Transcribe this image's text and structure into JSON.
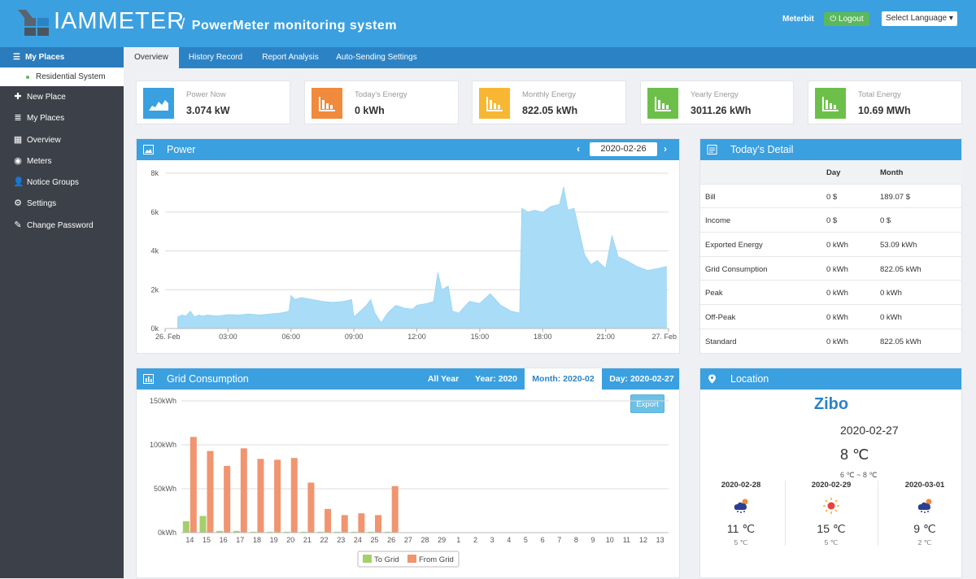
{
  "header": {
    "brand": "IAMMETER",
    "system_title": "PowerMeter monitoring system",
    "user": "Meterbit",
    "logout": "Logout",
    "language": "Select Language"
  },
  "sidebar": {
    "my_places": "My Places",
    "residential": "Residential System",
    "items": [
      {
        "label": "New Place",
        "icon": "plus-icon"
      },
      {
        "label": "My Places",
        "icon": "server-icon"
      },
      {
        "label": "Overview",
        "icon": "grid-icon"
      },
      {
        "label": "Meters",
        "icon": "dashboard-icon"
      },
      {
        "label": "Notice Groups",
        "icon": "user-icon"
      },
      {
        "label": "Settings",
        "icon": "gear-icon"
      },
      {
        "label": "Change Password",
        "icon": "edit-icon"
      }
    ]
  },
  "tabs": [
    "Overview",
    "History Record",
    "Report Analysis",
    "Auto-Sending Settings"
  ],
  "cards": [
    {
      "label": "Power Now",
      "value": "3.074 kW",
      "color": "#3aa0e0"
    },
    {
      "label": "Today's Energy",
      "value": "0 kWh",
      "color": "#f08a3c"
    },
    {
      "label": "Monthly Energy",
      "value": "822.05 kWh",
      "color": "#f7b733"
    },
    {
      "label": "Yearly Energy",
      "value": "3011.26 kWh",
      "color": "#6cc04a"
    },
    {
      "label": "Total Energy",
      "value": "10.69 MWh",
      "color": "#6cc04a"
    }
  ],
  "power_panel": {
    "title": "Power",
    "date": "2020-02-26"
  },
  "detail_panel": {
    "title": "Today's Detail",
    "headers": [
      "",
      "Day",
      "Month"
    ],
    "rows": [
      [
        "Bill",
        "0 $",
        "189.07 $"
      ],
      [
        "Income",
        "0 $",
        "0 $"
      ],
      [
        "Exported Energy",
        "0 kWh",
        "53.09 kWh"
      ],
      [
        "Grid Consumption",
        "0 kWh",
        "822.05 kWh"
      ],
      [
        "Peak",
        "0 kWh",
        "0 kWh"
      ],
      [
        "Off-Peak",
        "0 kWh",
        "0 kWh"
      ],
      [
        "Standard",
        "0 kWh",
        "822.05 kWh"
      ]
    ]
  },
  "grid_panel": {
    "title": "Grid Consumption",
    "tabs": [
      "All Year",
      "Year: 2020",
      "Month: 2020-02",
      "Day: 2020-02-27"
    ],
    "export": "Export"
  },
  "location_panel": {
    "title": "Location",
    "city": "Zibo",
    "date": "2020-02-27",
    "temp": "8 ℃",
    "range": "6 ℃ ~ 8 ℃",
    "forecast": [
      {
        "date": "2020-02-28",
        "high": "11 ℃",
        "low": "5 ℃",
        "icon": "cloudy-rain-icon"
      },
      {
        "date": "2020-02-29",
        "high": "15 ℃",
        "low": "5 ℃",
        "icon": "sun-icon"
      },
      {
        "date": "2020-03-01",
        "high": "9 ℃",
        "low": "2 ℃",
        "icon": "cloudy-rain-icon"
      }
    ]
  },
  "chart_data": [
    {
      "type": "area",
      "title": "Power",
      "y_ticks": [
        "0k",
        "2k",
        "4k",
        "6k",
        "8k"
      ],
      "ylim": [
        0,
        8000
      ],
      "x_ticks": [
        "26. Feb",
        "03:00",
        "06:00",
        "09:00",
        "12:00",
        "15:00",
        "18:00",
        "21:00",
        "27. Feb"
      ],
      "x_hours": [
        0,
        3,
        6,
        9,
        12,
        15,
        18,
        21,
        24
      ],
      "series": [
        {
          "color": "#a9dcf6",
          "points": [
            [
              0.6,
              600
            ],
            [
              0.8,
              700
            ],
            [
              1.0,
              650
            ],
            [
              1.2,
              900
            ],
            [
              1.4,
              600
            ],
            [
              1.6,
              700
            ],
            [
              1.8,
              650
            ],
            [
              2.0,
              700
            ],
            [
              2.5,
              650
            ],
            [
              3.0,
              720
            ],
            [
              3.5,
              700
            ],
            [
              4.0,
              750
            ],
            [
              4.5,
              700
            ],
            [
              5.0,
              750
            ],
            [
              5.5,
              800
            ],
            [
              5.9,
              900
            ],
            [
              6.0,
              1700
            ],
            [
              6.2,
              1500
            ],
            [
              6.5,
              1600
            ],
            [
              7.0,
              1500
            ],
            [
              7.5,
              1400
            ],
            [
              8.0,
              1350
            ],
            [
              8.5,
              1400
            ],
            [
              8.9,
              1500
            ],
            [
              9.0,
              600
            ],
            [
              9.3,
              900
            ],
            [
              9.6,
              1200
            ],
            [
              9.8,
              1500
            ],
            [
              10.0,
              800
            ],
            [
              10.3,
              300
            ],
            [
              10.6,
              800
            ],
            [
              11.0,
              1200
            ],
            [
              11.4,
              1050
            ],
            [
              11.8,
              1000
            ],
            [
              12.0,
              1200
            ],
            [
              12.5,
              1300
            ],
            [
              12.8,
              1400
            ],
            [
              13.0,
              2900
            ],
            [
              13.2,
              2000
            ],
            [
              13.5,
              2200
            ],
            [
              13.7,
              900
            ],
            [
              14.0,
              800
            ],
            [
              14.5,
              1400
            ],
            [
              15.0,
              1300
            ],
            [
              15.5,
              1800
            ],
            [
              16.0,
              1200
            ],
            [
              16.5,
              900
            ],
            [
              16.9,
              800
            ],
            [
              17.0,
              6200
            ],
            [
              17.3,
              6000
            ],
            [
              17.6,
              6100
            ],
            [
              18.0,
              6000
            ],
            [
              18.4,
              6300
            ],
            [
              18.8,
              6400
            ],
            [
              19.0,
              7300
            ],
            [
              19.2,
              6100
            ],
            [
              19.5,
              6200
            ],
            [
              20.0,
              3800
            ],
            [
              20.3,
              3300
            ],
            [
              20.6,
              3500
            ],
            [
              21.0,
              3100
            ],
            [
              21.3,
              4800
            ],
            [
              21.6,
              3700
            ],
            [
              22.0,
              3500
            ],
            [
              22.5,
              3200
            ],
            [
              23.0,
              3000
            ],
            [
              23.5,
              3100
            ],
            [
              23.9,
              3200
            ]
          ]
        }
      ]
    },
    {
      "type": "bar",
      "title": "Grid Consumption",
      "ylabel_ticks": [
        "0kWh",
        "50kWh",
        "100kWh",
        "150kWh"
      ],
      "ylim": [
        0,
        150
      ],
      "categories": [
        "14",
        "15",
        "16",
        "17",
        "18",
        "19",
        "20",
        "21",
        "22",
        "23",
        "24",
        "25",
        "26",
        "27",
        "28",
        "29",
        "1",
        "2",
        "3",
        "4",
        "5",
        "6",
        "7",
        "8",
        "9",
        "10",
        "11",
        "12",
        "13"
      ],
      "series": [
        {
          "name": "To Grid",
          "color": "#a5cf6a",
          "values": [
            13,
            19,
            2,
            2,
            1,
            1,
            1,
            1,
            1,
            1,
            1,
            1,
            1,
            0,
            0,
            0,
            0,
            0,
            0,
            0,
            0,
            0,
            0,
            0,
            0,
            0,
            0,
            0,
            0
          ]
        },
        {
          "name": "From Grid",
          "color": "#f09570",
          "values": [
            109,
            93,
            76,
            96,
            84,
            83,
            85,
            57,
            27,
            20,
            22,
            20,
            53,
            0,
            0,
            0,
            0,
            0,
            0,
            0,
            0,
            0,
            0,
            0,
            0,
            0,
            0,
            0,
            0
          ]
        }
      ]
    }
  ]
}
